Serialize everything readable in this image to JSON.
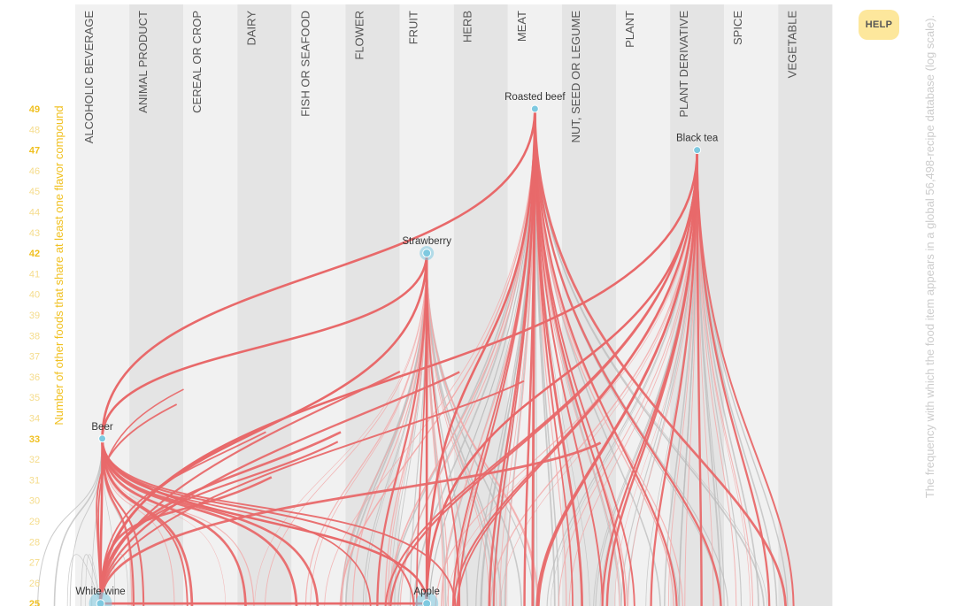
{
  "help_label": "HELP",
  "chart_data": {
    "type": "arc-network",
    "y_axis_title": "Number of other foods that share at least one flavor compound",
    "side_note": "The frequency with which the food item appears in a global 56,498-recipe database (log scale).",
    "categories": [
      "ALCOHOLIC BEVERAGE",
      "ANIMAL PRODUCT",
      "CEREAL OR CROP",
      "DAIRY",
      "FISH OR SEAFOOD",
      "FLOWER",
      "FRUIT",
      "HERB",
      "MEAT",
      "NUT, SEED OR LEGUME",
      "PLANT",
      "PLANT DERIVATIVE",
      "SPICE",
      "VEGETABLE"
    ],
    "y_ticks": [
      25,
      26,
      27,
      28,
      29,
      30,
      31,
      32,
      33,
      34,
      35,
      36,
      37,
      38,
      39,
      40,
      41,
      42,
      43,
      44,
      45,
      46,
      47,
      48,
      49
    ],
    "highlighted_ticks": [
      25,
      33,
      42,
      47,
      49
    ],
    "ylim": [
      25,
      49
    ],
    "colors": {
      "highlight_link": "#e8696a",
      "soft_link": "#f3a7a7",
      "gray_link": "#bcbcbc",
      "node": "#7ec9e0",
      "tick_strong": "#f0c020",
      "tick_weak": "#f5dc8c",
      "column_dark": "#e4e4e4",
      "column_light": "#f1f1f1"
    },
    "nodes": [
      {
        "name": "Roasted beef",
        "category": "MEAT",
        "y": 49,
        "size": 1
      },
      {
        "name": "Black tea",
        "category": "PLANT DERIVATIVE",
        "y": 47,
        "size": 1
      },
      {
        "name": "Strawberry",
        "category": "FRUIT",
        "y": 42,
        "size": 2
      },
      {
        "name": "Beer",
        "category": "ALCOHOLIC BEVERAGE",
        "y": 33,
        "size": 1
      },
      {
        "name": "White wine",
        "category": "ALCOHOLIC BEVERAGE",
        "y": 25,
        "size": 3
      },
      {
        "name": "Apple",
        "category": "FRUIT",
        "y": 25,
        "size": 3
      }
    ],
    "links": [
      [
        "Beer",
        "Roasted beef"
      ],
      [
        "Beer",
        "Strawberry"
      ],
      [
        "Beer",
        "Apple"
      ],
      [
        "Beer",
        "White wine"
      ],
      [
        "White wine",
        "Black tea"
      ],
      [
        "White wine",
        "Strawberry"
      ],
      [
        "White wine",
        "Apple"
      ],
      [
        "Apple",
        "Roasted beef"
      ],
      [
        "Apple",
        "Black tea"
      ],
      [
        "Strawberry",
        "Apple"
      ]
    ]
  }
}
